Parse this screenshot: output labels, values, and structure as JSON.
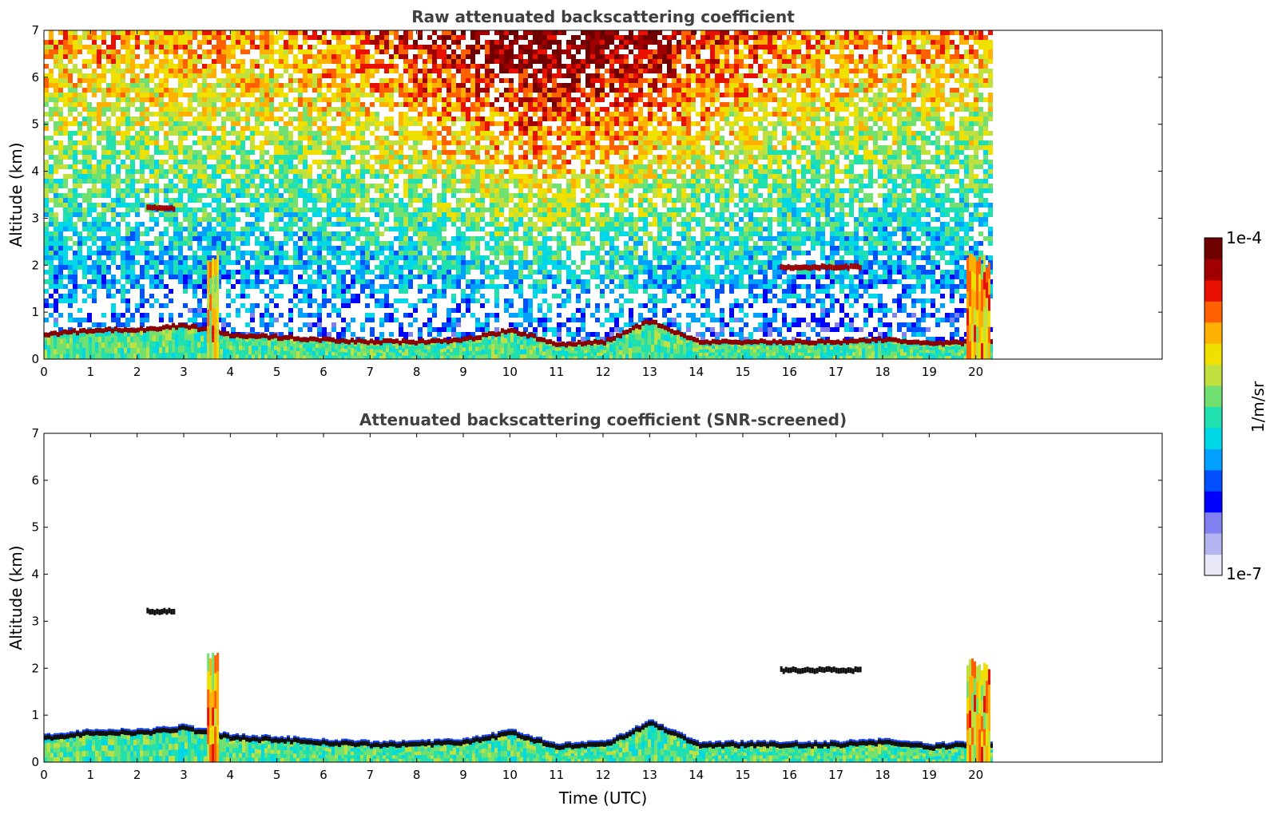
{
  "chart_data": [
    {
      "type": "heatmap",
      "title": "Raw attenuated backscattering coefficient",
      "xlabel": "",
      "ylabel": "Altitude (km)",
      "xlim": [
        0,
        24
      ],
      "ylim": [
        0,
        7
      ],
      "xticks": [
        "0",
        "1",
        "2",
        "3",
        "4",
        "5",
        "6",
        "7",
        "8",
        "9",
        "10",
        "11",
        "12",
        "13",
        "14",
        "15",
        "16",
        "17",
        "18",
        "19",
        "20"
      ],
      "yticks": [
        "0",
        "1",
        "2",
        "3",
        "4",
        "5",
        "6",
        "7"
      ],
      "data_end_hour": 20.3,
      "noise": "full",
      "features": [
        {
          "name": "boundary-layer-top",
          "start_hour": 0,
          "end_hour": 20.3,
          "altitude_km": [
            0.5,
            0.6,
            0.6,
            0.7,
            0.5,
            0.45,
            0.4,
            0.35,
            0.35,
            0.4,
            0.6,
            0.3,
            0.35,
            0.8,
            0.35,
            0.35,
            0.35,
            0.35,
            0.4,
            0.3,
            0.35
          ]
        },
        {
          "name": "cloud-layer-16-17.5h",
          "start_hour": 15.8,
          "end_hour": 17.5,
          "altitude_km": 1.95
        },
        {
          "name": "cloud-layer-2.3h",
          "start_hour": 2.2,
          "end_hour": 2.8,
          "altitude_km": 3.2
        },
        {
          "name": "plume-3.6h",
          "start_hour": 3.5,
          "end_hour": 3.75,
          "altitude_km": 2.2
        },
        {
          "name": "plume-20h",
          "start_hour": 19.8,
          "end_hour": 20.3,
          "altitude_km": 2.1
        }
      ]
    },
    {
      "type": "heatmap",
      "title": "Attenuated backscattering coefficient (SNR-screened)",
      "xlabel": "Time (UTC)",
      "ylabel": "Altitude (km)",
      "xlim": [
        0,
        24
      ],
      "ylim": [
        0,
        7
      ],
      "xticks": [
        "0",
        "1",
        "2",
        "3",
        "4",
        "5",
        "6",
        "7",
        "8",
        "9",
        "10",
        "11",
        "12",
        "13",
        "14",
        "15",
        "16",
        "17",
        "18",
        "19",
        "20"
      ],
      "yticks": [
        "0",
        "1",
        "2",
        "3",
        "4",
        "5",
        "6",
        "7"
      ],
      "data_end_hour": 20.3,
      "noise": "screened",
      "features": [
        {
          "name": "boundary-layer-top",
          "start_hour": 0,
          "end_hour": 20.3,
          "altitude_km": [
            0.5,
            0.6,
            0.6,
            0.7,
            0.5,
            0.45,
            0.4,
            0.35,
            0.35,
            0.4,
            0.6,
            0.3,
            0.35,
            0.8,
            0.35,
            0.35,
            0.35,
            0.35,
            0.4,
            0.3,
            0.35
          ]
        },
        {
          "name": "cloud-layer-16-17.5h",
          "start_hour": 15.8,
          "end_hour": 17.5,
          "altitude_km": 1.95
        },
        {
          "name": "cloud-layer-2.3h",
          "start_hour": 2.2,
          "end_hour": 2.8,
          "altitude_km": 3.2
        },
        {
          "name": "plume-3.6h",
          "start_hour": 3.5,
          "end_hour": 3.75,
          "altitude_km": 2.2
        },
        {
          "name": "plume-20h",
          "start_hour": 19.8,
          "end_hour": 20.3,
          "altitude_km": 2.1
        }
      ]
    }
  ],
  "colorbar": {
    "label": "1/m/sr",
    "min_label": "1e-7",
    "max_label": "1e-4",
    "colors": [
      "#e8e8f8",
      "#b4b4f0",
      "#8080f0",
      "#0000ff",
      "#0050ff",
      "#00a0ff",
      "#00d8e8",
      "#20e0b0",
      "#70e070",
      "#c0e040",
      "#f0e000",
      "#ffb000",
      "#ff6000",
      "#e81000",
      "#a00000",
      "#700000"
    ]
  }
}
